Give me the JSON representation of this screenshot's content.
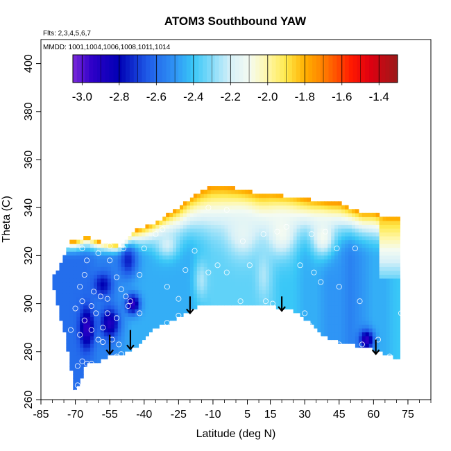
{
  "chart_data": {
    "type": "heatmap",
    "title": "ATOM3 Southbound YAW",
    "subtitle_flights": "Flts: 2,3,4,5,6,7",
    "subtitle_dates": "MMDD: 1001,1004,1006,1008,1011,1014",
    "xlabel": "Latitude (deg N)",
    "ylabel": "Theta (C)",
    "xlim": [
      -85,
      85
    ],
    "ylim": [
      260,
      410
    ],
    "x_ticks": [
      -85,
      -70,
      -55,
      -40,
      -25,
      -10,
      5,
      15,
      30,
      45,
      60,
      75
    ],
    "x_minor_ticks": [
      -80,
      -75,
      -65,
      -60,
      -50,
      -45,
      -35,
      -30,
      -20,
      -15,
      -5,
      0,
      10,
      20,
      25,
      35,
      40,
      50,
      55,
      65,
      70,
      80,
      85
    ],
    "y_ticks": [
      260,
      280,
      300,
      320,
      340,
      360,
      380,
      400
    ],
    "colorbar": {
      "min": -3.05,
      "max": -1.3,
      "ticks": [
        -3.0,
        -2.8,
        -2.6,
        -2.4,
        -2.2,
        -2.0,
        -1.8,
        -1.6,
        -1.4
      ],
      "tick_labels": [
        "-3.0",
        "-2.8",
        "-2.6",
        "-2.4",
        "-2.2",
        "-2.0",
        "-1.8",
        "-1.6",
        "-1.4"
      ],
      "stops": [
        {
          "value": -3.05,
          "color": "#7b2bd9"
        },
        {
          "value": -2.95,
          "color": "#3000c8"
        },
        {
          "value": -2.8,
          "color": "#0000b4"
        },
        {
          "value": -2.65,
          "color": "#1f5ae8"
        },
        {
          "value": -2.5,
          "color": "#2f95f5"
        },
        {
          "value": -2.4,
          "color": "#39c7f7"
        },
        {
          "value": -2.3,
          "color": "#86dcf9"
        },
        {
          "value": -2.2,
          "color": "#d6f0f8"
        },
        {
          "value": -2.1,
          "color": "#f4fbf2"
        },
        {
          "value": -2.0,
          "color": "#fff7a8"
        },
        {
          "value": -1.9,
          "color": "#ffe84a"
        },
        {
          "value": -1.8,
          "color": "#ffb000"
        },
        {
          "value": -1.7,
          "color": "#ff8000"
        },
        {
          "value": -1.55,
          "color": "#ff1a00"
        },
        {
          "value": -1.45,
          "color": "#e00010"
        },
        {
          "value": -1.3,
          "color": "#9a1a1a"
        }
      ]
    },
    "field": {
      "lats": [
        -70,
        -65,
        -60,
        -55,
        -50,
        -45,
        -40,
        -35,
        -30,
        -25,
        -20,
        -15,
        -10,
        -5,
        0,
        5,
        10,
        15,
        20,
        25,
        30,
        35,
        40,
        45,
        50,
        55,
        60,
        65,
        70
      ],
      "bottom": [
        262,
        275,
        276,
        278,
        279,
        281,
        285,
        290,
        292,
        294,
        297,
        300,
        300,
        300,
        300,
        300,
        300,
        299,
        298,
        297,
        294,
        289,
        286,
        284,
        283,
        282,
        281,
        279,
        277
      ],
      "top": [
        326,
        328,
        326,
        325,
        324,
        330,
        332,
        334,
        337,
        340,
        344,
        347,
        349,
        349,
        348,
        347,
        346,
        346,
        345,
        345,
        344,
        343,
        342,
        342,
        340,
        338,
        338,
        336,
        336
      ],
      "left_edge": [
        [
          -70,
          262
        ],
        [
          -74,
          285
        ],
        [
          -78,
          300
        ],
        [
          -80,
          310
        ],
        [
          -76,
          318
        ],
        [
          -72,
          326
        ]
      ],
      "base_values": [
        -2.6,
        -2.6,
        -2.55,
        -2.55,
        -2.5,
        -2.45,
        -2.45,
        -2.45,
        -2.45,
        -2.45,
        -2.45,
        -2.4,
        -2.35,
        -2.35,
        -2.35,
        -2.35,
        -2.35,
        -2.35,
        -2.4,
        -2.4,
        -2.45,
        -2.45,
        -2.5,
        -2.5,
        -2.55,
        -2.5,
        -2.45,
        -2.45,
        -2.4
      ],
      "upper_gradient_start_theta": 318
    },
    "anomalies": [
      {
        "lat": -65,
        "theta": 290,
        "value": -2.95,
        "lat_radius": 3,
        "theta_radius": 8
      },
      {
        "lat": -55,
        "theta": 292,
        "value": -2.9,
        "lat_radius": 4,
        "theta_radius": 6
      },
      {
        "lat": -45,
        "theta": 300,
        "value": -2.95,
        "lat_radius": 3,
        "theta_radius": 4
      },
      {
        "lat": -58,
        "theta": 308,
        "value": -2.8,
        "lat_radius": 4,
        "theta_radius": 5
      },
      {
        "lat": -47,
        "theta": 318,
        "value": -2.75,
        "lat_radius": 4,
        "theta_radius": 7
      },
      {
        "lat": 57,
        "theta": 285,
        "value": -2.95,
        "lat_radius": 3,
        "theta_radius": 4
      },
      {
        "lat": -30,
        "theta": 325,
        "value": -2.2,
        "lat_radius": 5,
        "theta_radius": 6
      },
      {
        "lat": 3,
        "theta": 330,
        "value": -2.15,
        "lat_radius": 7,
        "theta_radius": 10
      },
      {
        "lat": 20,
        "theta": 330,
        "value": -2.1,
        "lat_radius": 6,
        "theta_radius": 10
      },
      {
        "lat": 38,
        "theta": 328,
        "value": -2.1,
        "lat_radius": 5,
        "theta_radius": 8
      },
      {
        "lat": -15,
        "theta": 310,
        "value": -2.25,
        "lat_radius": 3,
        "theta_radius": 8
      },
      {
        "lat": 12,
        "theta": 312,
        "value": -2.25,
        "lat_radius": 3,
        "theta_radius": 10
      }
    ],
    "observation_points": [
      {
        "lat": -70,
        "theta": 263
      },
      {
        "lat": -69,
        "theta": 266
      },
      {
        "lat": -69,
        "theta": 274
      },
      {
        "lat": -67,
        "theta": 276
      },
      {
        "lat": -65,
        "theta": 275
      },
      {
        "lat": -63,
        "theta": 275
      },
      {
        "lat": -72,
        "theta": 289
      },
      {
        "lat": -68,
        "theta": 287
      },
      {
        "lat": -66,
        "theta": 293
      },
      {
        "lat": -70,
        "theta": 298
      },
      {
        "lat": -67,
        "theta": 301
      },
      {
        "lat": -63,
        "theta": 299
      },
      {
        "lat": -61,
        "theta": 296
      },
      {
        "lat": -60,
        "theta": 285
      },
      {
        "lat": -58,
        "theta": 284
      },
      {
        "lat": -63,
        "theta": 289
      },
      {
        "lat": -58,
        "theta": 290
      },
      {
        "lat": -66,
        "theta": 312
      },
      {
        "lat": -68,
        "theta": 307
      },
      {
        "lat": -65,
        "theta": 318
      },
      {
        "lat": -67,
        "theta": 323
      },
      {
        "lat": -62,
        "theta": 305
      },
      {
        "lat": -59,
        "theta": 303
      },
      {
        "lat": -56,
        "theta": 302
      },
      {
        "lat": -56,
        "theta": 296
      },
      {
        "lat": -52,
        "theta": 294
      },
      {
        "lat": -54,
        "theta": 285
      },
      {
        "lat": -51,
        "theta": 283
      },
      {
        "lat": -50,
        "theta": 279
      },
      {
        "lat": -52,
        "theta": 278
      },
      {
        "lat": -47,
        "theta": 299
      },
      {
        "lat": -48,
        "theta": 303
      },
      {
        "lat": -50,
        "theta": 306
      },
      {
        "lat": -46,
        "theta": 301
      },
      {
        "lat": -42,
        "theta": 296
      },
      {
        "lat": -52,
        "theta": 311
      },
      {
        "lat": -55,
        "theta": 318
      },
      {
        "lat": -60,
        "theta": 321
      },
      {
        "lat": -55,
        "theta": 324
      },
      {
        "lat": -49,
        "theta": 323
      },
      {
        "lat": -40,
        "theta": 323
      },
      {
        "lat": -35,
        "theta": 329
      },
      {
        "lat": -32,
        "theta": 331
      },
      {
        "lat": -42,
        "theta": 312
      },
      {
        "lat": -30,
        "theta": 307
      },
      {
        "lat": -25,
        "theta": 302
      },
      {
        "lat": -30,
        "theta": 292
      },
      {
        "lat": -25,
        "theta": 295
      },
      {
        "lat": -22,
        "theta": 314
      },
      {
        "lat": -18,
        "theta": 322
      },
      {
        "lat": -12,
        "theta": 313
      },
      {
        "lat": -8,
        "theta": 316
      },
      {
        "lat": -4,
        "theta": 313
      },
      {
        "lat": -12,
        "theta": 340
      },
      {
        "lat": -4,
        "theta": 339
      },
      {
        "lat": 3,
        "theta": 326
      },
      {
        "lat": 2,
        "theta": 301
      },
      {
        "lat": 6,
        "theta": 316
      },
      {
        "lat": 13,
        "theta": 301
      },
      {
        "lat": 16,
        "theta": 300
      },
      {
        "lat": 12,
        "theta": 329
      },
      {
        "lat": 18,
        "theta": 330
      },
      {
        "lat": 22,
        "theta": 332
      },
      {
        "lat": 30,
        "theta": 296
      },
      {
        "lat": 32,
        "theta": 291
      },
      {
        "lat": 28,
        "theta": 316
      },
      {
        "lat": 34,
        "theta": 313
      },
      {
        "lat": 37,
        "theta": 309
      },
      {
        "lat": 33,
        "theta": 329
      },
      {
        "lat": 39,
        "theta": 330
      },
      {
        "lat": 36,
        "theta": 286
      },
      {
        "lat": 45,
        "theta": 283
      },
      {
        "lat": 45,
        "theta": 307
      },
      {
        "lat": 44,
        "theta": 323
      },
      {
        "lat": 52,
        "theta": 323
      },
      {
        "lat": 54,
        "theta": 301
      },
      {
        "lat": 55,
        "theta": 283
      },
      {
        "lat": 62,
        "theta": 285
      },
      {
        "lat": 67,
        "theta": 278
      },
      {
        "lat": 72,
        "theta": 296
      }
    ],
    "arrows": [
      {
        "lat": -55,
        "theta_start": 287,
        "theta_end": 279
      },
      {
        "lat": -46,
        "theta_start": 289,
        "theta_end": 281
      },
      {
        "lat": -20,
        "theta_start": 303,
        "theta_end": 296
      },
      {
        "lat": 20,
        "theta_start": 303,
        "theta_end": 297
      },
      {
        "lat": 61,
        "theta_start": 285,
        "theta_end": 279
      }
    ]
  }
}
